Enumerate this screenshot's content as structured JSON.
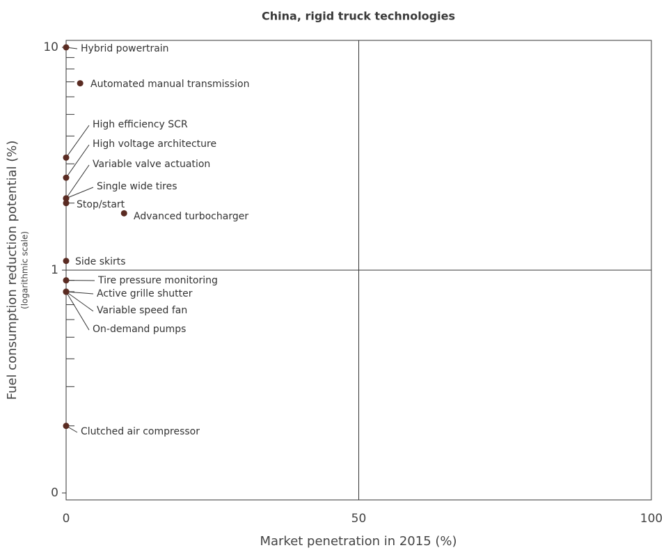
{
  "chart_data": {
    "type": "scatter",
    "title": "China, rigid truck technologies",
    "xlabel": "Market penetration in 2015 (%)",
    "ylabel": "Fuel consumption reduction potential (%)",
    "ylabel_note": "(logarithmic scale)",
    "ylog": true,
    "grid": true,
    "color": "#5a2b22",
    "xlim": [
      0,
      100
    ],
    "xticks": [
      0,
      50,
      100
    ],
    "ylim": [
      0.1,
      10
    ],
    "yticks": [
      {
        "value": 0.1,
        "label": "0"
      },
      1,
      10
    ],
    "yminorticks": [
      0.2,
      0.3,
      0.4,
      0.5,
      0.6,
      0.7,
      0.8,
      0.9,
      2,
      3,
      4,
      5,
      6,
      7,
      8,
      9
    ],
    "labels": [
      "Hybrid powertrain",
      "Automated manual transmission",
      "High efficiency SCR",
      "High voltage architecture",
      "Variable valve actuation",
      "Single wide tires",
      "Stop/start",
      "Advanced turbocharger",
      "Side skirts",
      "Tire pressure monitoring",
      "Active grille shutter",
      "Variable speed fan",
      "On-demand pumps",
      "Clutched air compressor"
    ],
    "x": [
      0,
      2.4,
      0,
      0,
      0,
      0,
      0,
      9.9,
      0,
      0,
      0,
      0,
      0,
      0
    ],
    "values": [
      10,
      6.9,
      3.2,
      2.6,
      2.1,
      2.1,
      2.0,
      1.8,
      1.1,
      0.9,
      0.8,
      0.8,
      0.8,
      0.2
    ]
  }
}
